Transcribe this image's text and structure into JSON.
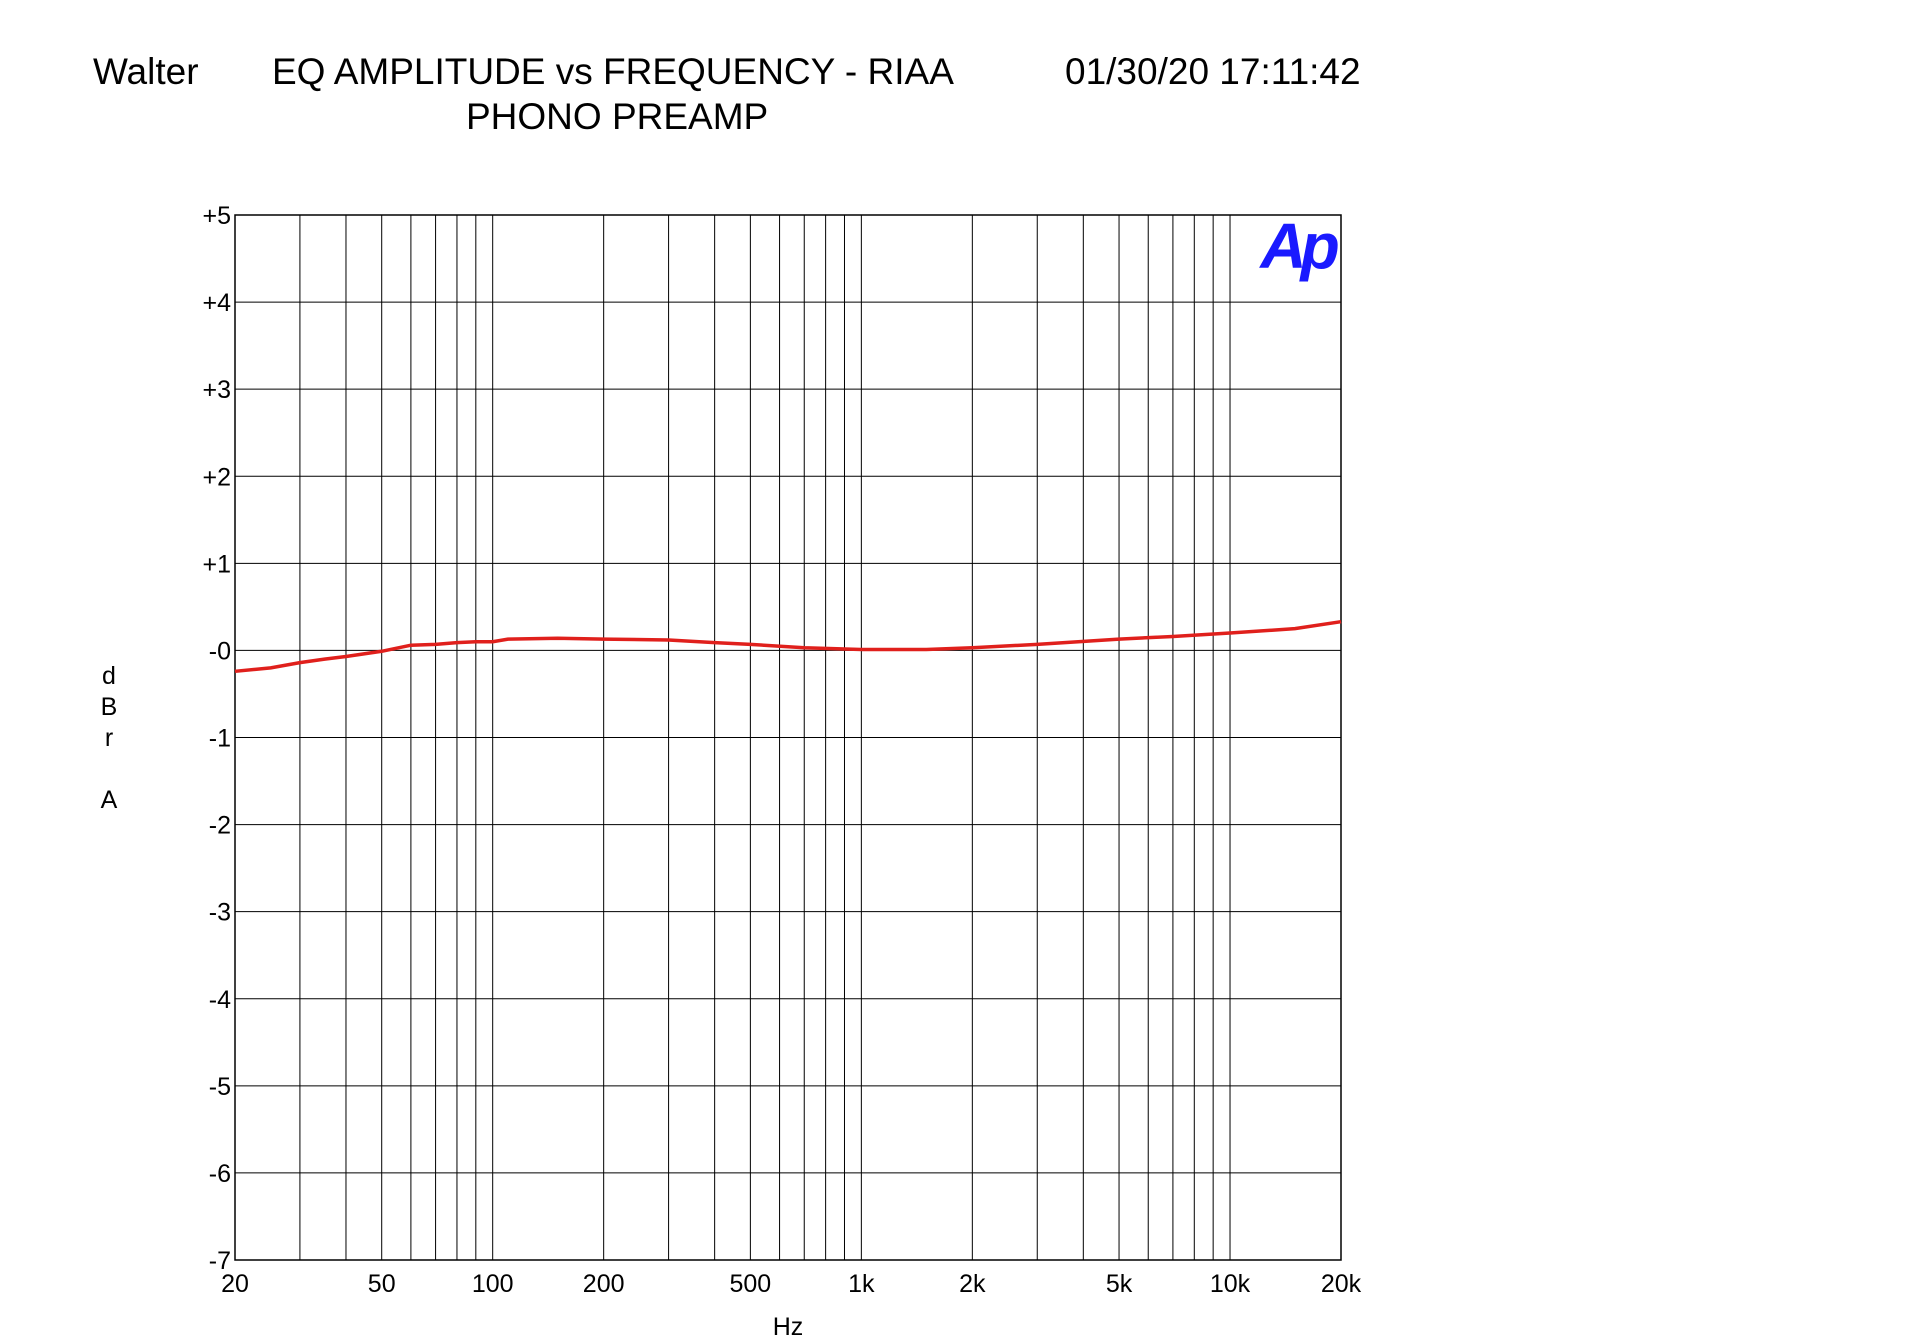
{
  "chart_data": {
    "type": "line",
    "header": "Walter",
    "title": "EQ AMPLITUDE vs FREQUENCY - RIAA",
    "timestamp": "01/30/20 17:11:42",
    "subtitle": "PHONO PREAMP",
    "ylabel": "dBr A",
    "xlabel": "Hz",
    "logo": "Ap",
    "xscale": "log",
    "grid": true,
    "color": "#e0201c",
    "xlim": [
      20,
      20000
    ],
    "ylim": [
      -7,
      5
    ],
    "xticks": [
      20,
      50,
      100,
      200,
      500,
      {
        "value": 1000,
        "label": "1k"
      },
      {
        "value": 2000,
        "label": "2k"
      },
      {
        "value": 5000,
        "label": "5k"
      },
      {
        "value": 10000,
        "label": "10k"
      },
      {
        "value": 20000,
        "label": "20k"
      }
    ],
    "xgrid": [
      30,
      40,
      60,
      70,
      80,
      90,
      300,
      400,
      600,
      700,
      800,
      900,
      3000,
      4000,
      6000,
      7000,
      8000,
      9000
    ],
    "yticks": [
      {
        "value": 5,
        "label": "+5"
      },
      {
        "value": 4,
        "label": "+4"
      },
      {
        "value": 3,
        "label": "+3"
      },
      {
        "value": 2,
        "label": "+2"
      },
      {
        "value": 1,
        "label": "+1"
      },
      {
        "value": 0,
        "label": "-0"
      },
      -1,
      -2,
      -3,
      -4,
      -5,
      -6,
      -7
    ],
    "x": [
      20,
      25,
      30,
      35,
      40,
      50,
      60,
      70,
      80,
      90,
      100,
      110,
      150,
      200,
      300,
      400,
      500,
      700,
      1000,
      1500,
      2000,
      3000,
      5000,
      7000,
      10000,
      15000,
      20000
    ],
    "values": [
      -0.24,
      -0.2,
      -0.14,
      -0.1,
      -0.07,
      -0.01,
      0.06,
      0.07,
      0.09,
      0.1,
      0.1,
      0.13,
      0.14,
      0.13,
      0.12,
      0.09,
      0.07,
      0.03,
      0.01,
      0.01,
      0.03,
      0.07,
      0.13,
      0.16,
      0.2,
      0.25,
      0.33
    ]
  }
}
